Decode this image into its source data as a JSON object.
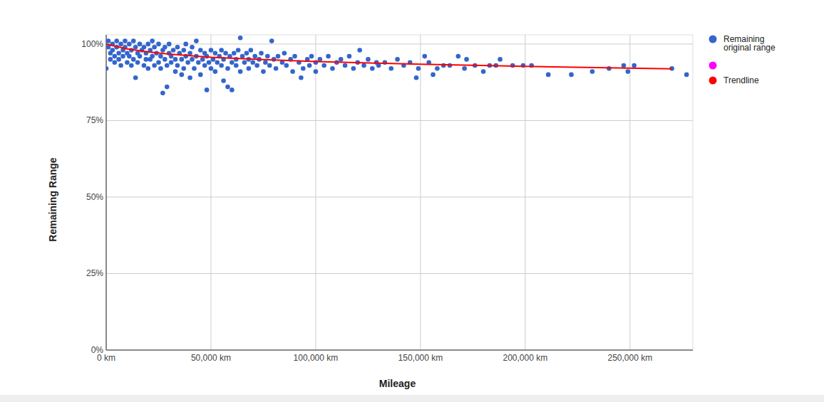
{
  "chart_data": {
    "type": "scatter",
    "x_label": "Mileage",
    "y_label": "Remaining Range",
    "xlim": [
      0,
      280000
    ],
    "ylim": [
      0,
      103
    ],
    "xticks": [
      {
        "value": 0,
        "label": "0 km"
      },
      {
        "value": 50000,
        "label": "50,000 km"
      },
      {
        "value": 100000,
        "label": "100,000 km"
      },
      {
        "value": 150000,
        "label": "150,000 km"
      },
      {
        "value": 200000,
        "label": "200,000 km"
      },
      {
        "value": 250000,
        "label": "250,000 km"
      }
    ],
    "yticks": [
      {
        "value": 0,
        "label": "0%"
      },
      {
        "value": 25,
        "label": "25%"
      },
      {
        "value": 50,
        "label": "50%"
      },
      {
        "value": 75,
        "label": "75%"
      },
      {
        "value": 100,
        "label": "100%"
      }
    ],
    "grid": true,
    "legend": "right",
    "series": [
      {
        "name": "Remaining original range",
        "color": "#3366cc",
        "type": "scatter",
        "marker": "circle",
        "x": [
          0,
          1000,
          1000,
          2000,
          2000,
          3000,
          3000,
          4000,
          4000,
          5000,
          5000,
          6000,
          6000,
          7000,
          7000,
          8000,
          8000,
          9000,
          9000,
          10000,
          10000,
          11000,
          11000,
          12000,
          12000,
          13000,
          13000,
          14000,
          14000,
          15000,
          15000,
          16000,
          16000,
          17000,
          18000,
          18000,
          19000,
          19000,
          20000,
          20000,
          21000,
          21000,
          22000,
          22000,
          23000,
          23000,
          24000,
          25000,
          25000,
          26000,
          26000,
          27000,
          27000,
          28000,
          28000,
          29000,
          29000,
          30000,
          30000,
          31000,
          31000,
          32000,
          33000,
          33000,
          34000,
          34000,
          35000,
          36000,
          36000,
          37000,
          37000,
          38000,
          38000,
          39000,
          40000,
          40000,
          41000,
          41000,
          42000,
          43000,
          43000,
          44000,
          45000,
          45000,
          46000,
          47000,
          47000,
          48000,
          48000,
          49000,
          50000,
          50000,
          51000,
          52000,
          52000,
          53000,
          54000,
          55000,
          55000,
          56000,
          56000,
          57000,
          58000,
          58000,
          59000,
          60000,
          60000,
          61000,
          62000,
          62000,
          63000,
          64000,
          64000,
          65000,
          66000,
          67000,
          68000,
          68000,
          69000,
          70000,
          71000,
          72000,
          73000,
          74000,
          75000,
          76000,
          77000,
          78000,
          79000,
          80000,
          81000,
          82000,
          84000,
          85000,
          86000,
          88000,
          89000,
          90000,
          92000,
          93000,
          94000,
          96000,
          97000,
          98000,
          100000,
          100000,
          102000,
          104000,
          106000,
          108000,
          110000,
          112000,
          114000,
          116000,
          118000,
          120000,
          121000,
          123000,
          125000,
          127000,
          129000,
          130000,
          133000,
          136000,
          139000,
          142000,
          145000,
          148000,
          149000,
          152000,
          154000,
          156000,
          158000,
          161000,
          164000,
          168000,
          171000,
          172000,
          176000,
          180000,
          183000,
          186000,
          188000,
          194000,
          199000,
          203000,
          211000,
          222000,
          232000,
          240000,
          247000,
          249000,
          252000,
          270000,
          277000
        ],
        "values": [
          92,
          99,
          101,
          97,
          95,
          100,
          98,
          96,
          94,
          101,
          99,
          97,
          95,
          100,
          93,
          98,
          96,
          101,
          99,
          94,
          97,
          100,
          96,
          98,
          93,
          101,
          95,
          89,
          99,
          97,
          94,
          100,
          96,
          98,
          93,
          99,
          95,
          97,
          100,
          92,
          98,
          95,
          101,
          96,
          93,
          99,
          97,
          94,
          100,
          96,
          92,
          98,
          84,
          95,
          99,
          86,
          93,
          97,
          100,
          94,
          96,
          98,
          91,
          95,
          99,
          93,
          97,
          90,
          95,
          98,
          92,
          96,
          100,
          94,
          89,
          97,
          95,
          99,
          92,
          96,
          101,
          94,
          98,
          90,
          95,
          93,
          97,
          85,
          96,
          94,
          98,
          92,
          95,
          97,
          91,
          94,
          96,
          93,
          98,
          88,
          95,
          97,
          92,
          86,
          96,
          94,
          85,
          97,
          93,
          95,
          98,
          102,
          91,
          96,
          94,
          97,
          92,
          95,
          98,
          94,
          96,
          93,
          95,
          97,
          91,
          94,
          96,
          93,
          101,
          95,
          92,
          96,
          94,
          97,
          93,
          95,
          91,
          96,
          94,
          89,
          92,
          95,
          93,
          96,
          91,
          94,
          95,
          93,
          96,
          92,
          94,
          95,
          93,
          96,
          92,
          94,
          98,
          93,
          95,
          92,
          94,
          93,
          94,
          92,
          95,
          93,
          94,
          89,
          92,
          96,
          94,
          90,
          92,
          93,
          93,
          96,
          92,
          95,
          93,
          91,
          93,
          93,
          95,
          93,
          93,
          93,
          90,
          90,
          91,
          92,
          93,
          91,
          93,
          92,
          90
        ]
      },
      {
        "name": null,
        "color": "#ff00ff",
        "type": "scatter",
        "marker": "circle",
        "x": [],
        "values": []
      },
      {
        "name": "Trendline",
        "color": "#ff0000",
        "type": "line",
        "line_style": "solid",
        "x": [
          0,
          10000,
          20000,
          30000,
          50000,
          75000,
          100000,
          150000,
          200000,
          270000
        ],
        "values": [
          100,
          98.4,
          97.4,
          96.7,
          95.7,
          94.9,
          94.3,
          93.4,
          92.7,
          91.9
        ]
      }
    ]
  }
}
